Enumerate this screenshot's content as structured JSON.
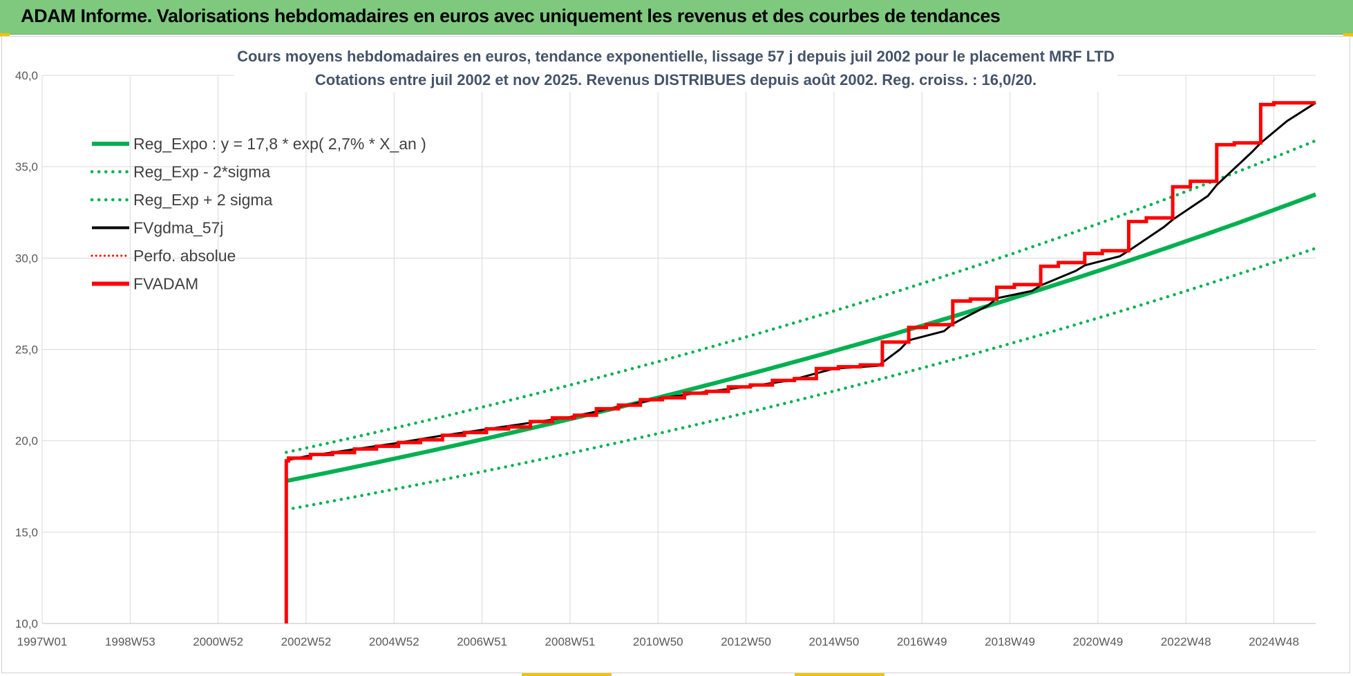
{
  "page": {
    "banner_title": "ADAM Informe. Valorisations hebdomadaires en euros avec uniquement les revenus et des courbes de tendances"
  },
  "colors": {
    "banner": "#7fc97f",
    "trend": "#00b050",
    "price": "#000000",
    "fvadam": "#ff0000",
    "grid": "#d9d9d9"
  },
  "chart_data": {
    "type": "line",
    "title_lines": [
      "Cours moyens hebdomadaires en euros, tendance exponentielle, lissage 57 j depuis juil 2002 pour le placement MRF LTD",
      "Cotations entre juil 2002 et nov 2025. Revenus DISTRIBUES depuis août 2002. Reg. croiss. : 16,0/20."
    ],
    "ylim": [
      10,
      40
    ],
    "yticks": [
      10,
      15,
      20,
      25,
      30,
      35,
      40
    ],
    "ytick_labels": [
      "10,0",
      "15,0",
      "20,0",
      "25,0",
      "30,0",
      "35,0",
      "40,0"
    ],
    "xlim": [
      1997.0,
      2025.95
    ],
    "xtick_labels": [
      "1997W01",
      "1998W53",
      "2000W52",
      "2002W52",
      "2004W52",
      "2006W51",
      "2008W51",
      "2010W50",
      "2012W50",
      "2014W50",
      "2016W49",
      "2018W49",
      "2020W49",
      "2022W48",
      "2024W48"
    ],
    "xtick_positions": [
      1997.0,
      1999.0,
      2001.0,
      2003.0,
      2005.0,
      2007.0,
      2009.0,
      2011.0,
      2013.0,
      2015.0,
      2017.0,
      2019.0,
      2021.0,
      2023.0,
      2025.0
    ],
    "legend_position": "top-left",
    "legend": [
      {
        "label": "Reg_Expo : y = 17,8 * exp( 2,7% *  X_an )",
        "key": "reg"
      },
      {
        "label": "Reg_Exp - 2*sigma",
        "key": "reg_lo"
      },
      {
        "label": "Reg_Exp + 2 sigma",
        "key": "reg_hi"
      },
      {
        "label": "FVgdma_57j",
        "key": "fvgdma"
      },
      {
        "label": "Perfo. absolue",
        "key": "perfo"
      },
      {
        "label": "FVADAM",
        "key": "fvadam"
      }
    ],
    "regression": {
      "start_x": 2002.55,
      "end_x": 2025.95,
      "a": 17.8,
      "rate": 0.027,
      "sigma_factor": 0.088
    },
    "fvadam_series": {
      "name": "FVADAM",
      "x": [
        2002.55,
        2002.55,
        2002.6,
        2002.6,
        2003.1,
        2003.1,
        2003.6,
        2003.6,
        2004.1,
        2004.1,
        2004.6,
        2004.6,
        2005.1,
        2005.1,
        2005.6,
        2005.6,
        2006.1,
        2006.1,
        2006.6,
        2006.6,
        2007.1,
        2007.1,
        2007.6,
        2007.6,
        2008.1,
        2008.1,
        2008.6,
        2008.6,
        2009.1,
        2009.1,
        2009.6,
        2009.6,
        2010.1,
        2010.1,
        2010.6,
        2010.6,
        2011.1,
        2011.1,
        2011.6,
        2011.6,
        2012.1,
        2012.1,
        2012.6,
        2012.6,
        2013.1,
        2013.1,
        2013.6,
        2013.6,
        2014.1,
        2014.1,
        2014.6,
        2014.6,
        2015.1,
        2015.1,
        2015.6,
        2015.6,
        2016.1,
        2016.1,
        2016.7,
        2016.7,
        2017.1,
        2017.1,
        2017.7,
        2017.7,
        2018.1,
        2018.1,
        2018.7,
        2018.7,
        2019.1,
        2019.1,
        2019.7,
        2019.7,
        2020.1,
        2020.1,
        2020.7,
        2020.7,
        2021.1,
        2021.1,
        2021.7,
        2021.7,
        2022.1,
        2022.1,
        2022.7,
        2022.7,
        2023.1,
        2023.1,
        2023.7,
        2023.7,
        2024.1,
        2024.1,
        2024.7,
        2024.7,
        2025.0,
        2025.0,
        2025.95
      ],
      "y": [
        10.0,
        18.9,
        18.9,
        19.05,
        19.05,
        19.25,
        19.25,
        19.35,
        19.35,
        19.55,
        19.55,
        19.7,
        19.7,
        19.9,
        19.9,
        20.05,
        20.05,
        20.3,
        20.3,
        20.45,
        20.45,
        20.65,
        20.65,
        20.75,
        20.75,
        21.05,
        21.05,
        21.25,
        21.25,
        21.4,
        21.4,
        21.75,
        21.75,
        21.95,
        21.95,
        22.25,
        22.25,
        22.35,
        22.35,
        22.6,
        22.6,
        22.7,
        22.7,
        22.95,
        22.95,
        23.05,
        23.05,
        23.3,
        23.3,
        23.4,
        23.4,
        23.95,
        23.95,
        24.05,
        24.05,
        24.15,
        24.15,
        25.4,
        25.4,
        26.2,
        26.2,
        26.35,
        26.35,
        27.65,
        27.65,
        27.75,
        27.75,
        28.4,
        28.4,
        28.55,
        28.55,
        29.55,
        29.55,
        29.75,
        29.75,
        30.25,
        30.25,
        30.4,
        30.4,
        32.0,
        32.0,
        32.2,
        32.2,
        33.9,
        33.9,
        34.2,
        34.2,
        36.2,
        36.2,
        36.3,
        36.3,
        38.4,
        38.4,
        38.5,
        38.5
      ]
    },
    "fvgdma_series": {
      "name": "FVgdma_57j",
      "x": [
        2002.6,
        2003.0,
        2004.0,
        2005.0,
        2006.0,
        2007.0,
        2008.0,
        2009.0,
        2010.0,
        2011.0,
        2012.0,
        2013.0,
        2014.0,
        2015.0,
        2016.0,
        2016.5,
        2016.7,
        2017.5,
        2017.7,
        2018.5,
        2018.7,
        2019.5,
        2019.7,
        2020.5,
        2020.7,
        2021.5,
        2021.7,
        2022.5,
        2022.7,
        2023.5,
        2023.7,
        2024.5,
        2024.7,
        2025.3,
        2025.95
      ],
      "y": [
        18.95,
        19.15,
        19.5,
        19.85,
        20.25,
        20.6,
        20.95,
        21.3,
        21.8,
        22.3,
        22.65,
        22.95,
        23.3,
        23.95,
        24.1,
        25.0,
        25.5,
        26.0,
        26.4,
        27.4,
        27.8,
        28.2,
        28.5,
        29.3,
        29.6,
        30.1,
        30.4,
        31.7,
        32.1,
        33.4,
        34.0,
        35.8,
        36.3,
        37.5,
        38.5
      ]
    }
  }
}
